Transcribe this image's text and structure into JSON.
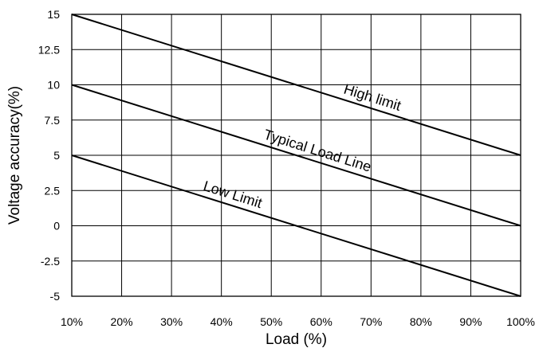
{
  "chart_data": {
    "type": "line",
    "xlabel": "Load (%)",
    "ylabel": "Voltage accuracy(%)",
    "x_ticks": [
      "10%",
      "20%",
      "30%",
      "40%",
      "50%",
      "60%",
      "70%",
      "80%",
      "90%",
      "100%"
    ],
    "y_ticks": [
      "15",
      "12.5",
      "10",
      "7.5",
      "5",
      "2.5",
      "0",
      "-2.5",
      "-5"
    ],
    "xlim": [
      10,
      100
    ],
    "ylim": [
      -5,
      15
    ],
    "grid": true,
    "legend": "none",
    "series": [
      {
        "name": "High limit",
        "x": [
          10,
          100
        ],
        "y": [
          15,
          5
        ]
      },
      {
        "name": "Typical Load Line",
        "x": [
          10,
          100
        ],
        "y": [
          10,
          0
        ]
      },
      {
        "name": "Low Limit",
        "x": [
          10,
          100
        ],
        "y": [
          5,
          -5
        ]
      }
    ]
  }
}
